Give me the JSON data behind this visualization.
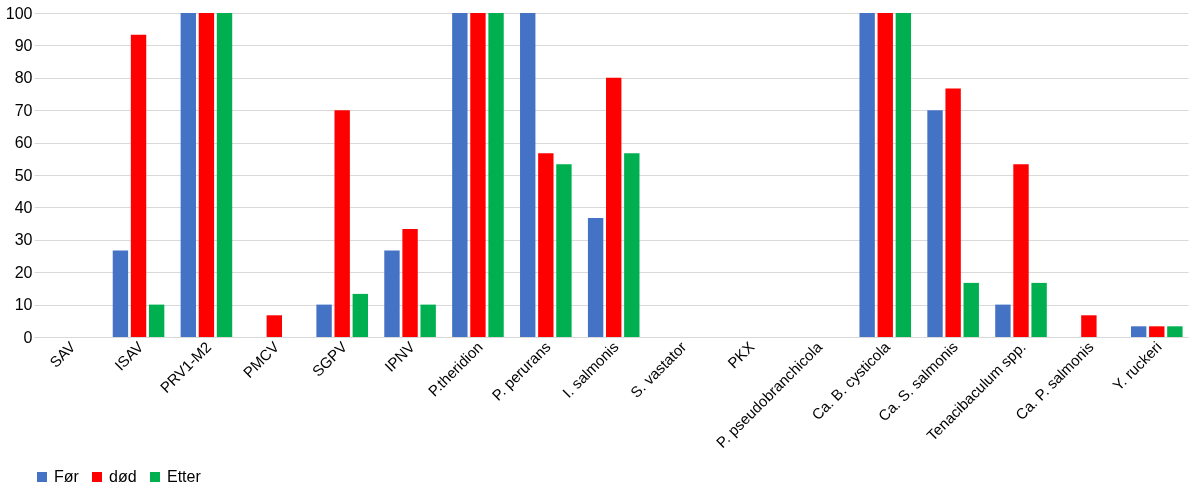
{
  "chart_data": {
    "type": "bar",
    "categories": [
      "SAV",
      "ISAV",
      "PRV1-M2",
      "PMCV",
      "SGPV",
      "IPNV",
      "P.theridion",
      "P. perurans",
      "I. salmonis",
      "S. vastator",
      "PKX",
      "P. pseudobranchicola",
      "Ca. B. cysticola",
      "Ca. S. salmonis",
      "Tenacibaculum spp.",
      "Ca. P. salmonis",
      "Y. ruckeri"
    ],
    "series": [
      {
        "name": "Før",
        "color": "#4472c4",
        "values": [
          0,
          26.7,
          100,
          0,
          10,
          26.7,
          100,
          100,
          36.7,
          0,
          0,
          0,
          100,
          70,
          10,
          0,
          3.3
        ]
      },
      {
        "name": "død",
        "color": "#ff0000",
        "values": [
          0,
          93.3,
          100,
          6.7,
          70,
          33.3,
          100,
          56.7,
          80,
          0,
          0,
          0,
          100,
          76.7,
          53.3,
          6.7,
          3.3
        ]
      },
      {
        "name": "Etter",
        "color": "#00b050",
        "values": [
          0,
          10,
          100,
          0,
          13.3,
          10,
          100,
          53.3,
          56.7,
          0,
          0,
          0,
          100,
          16.7,
          16.7,
          0,
          3.3
        ]
      }
    ],
    "ylim": [
      0,
      100
    ],
    "yticks": [
      0,
      10,
      20,
      30,
      40,
      50,
      60,
      70,
      80,
      90,
      100
    ],
    "grid": "y",
    "legend": "bottom"
  }
}
